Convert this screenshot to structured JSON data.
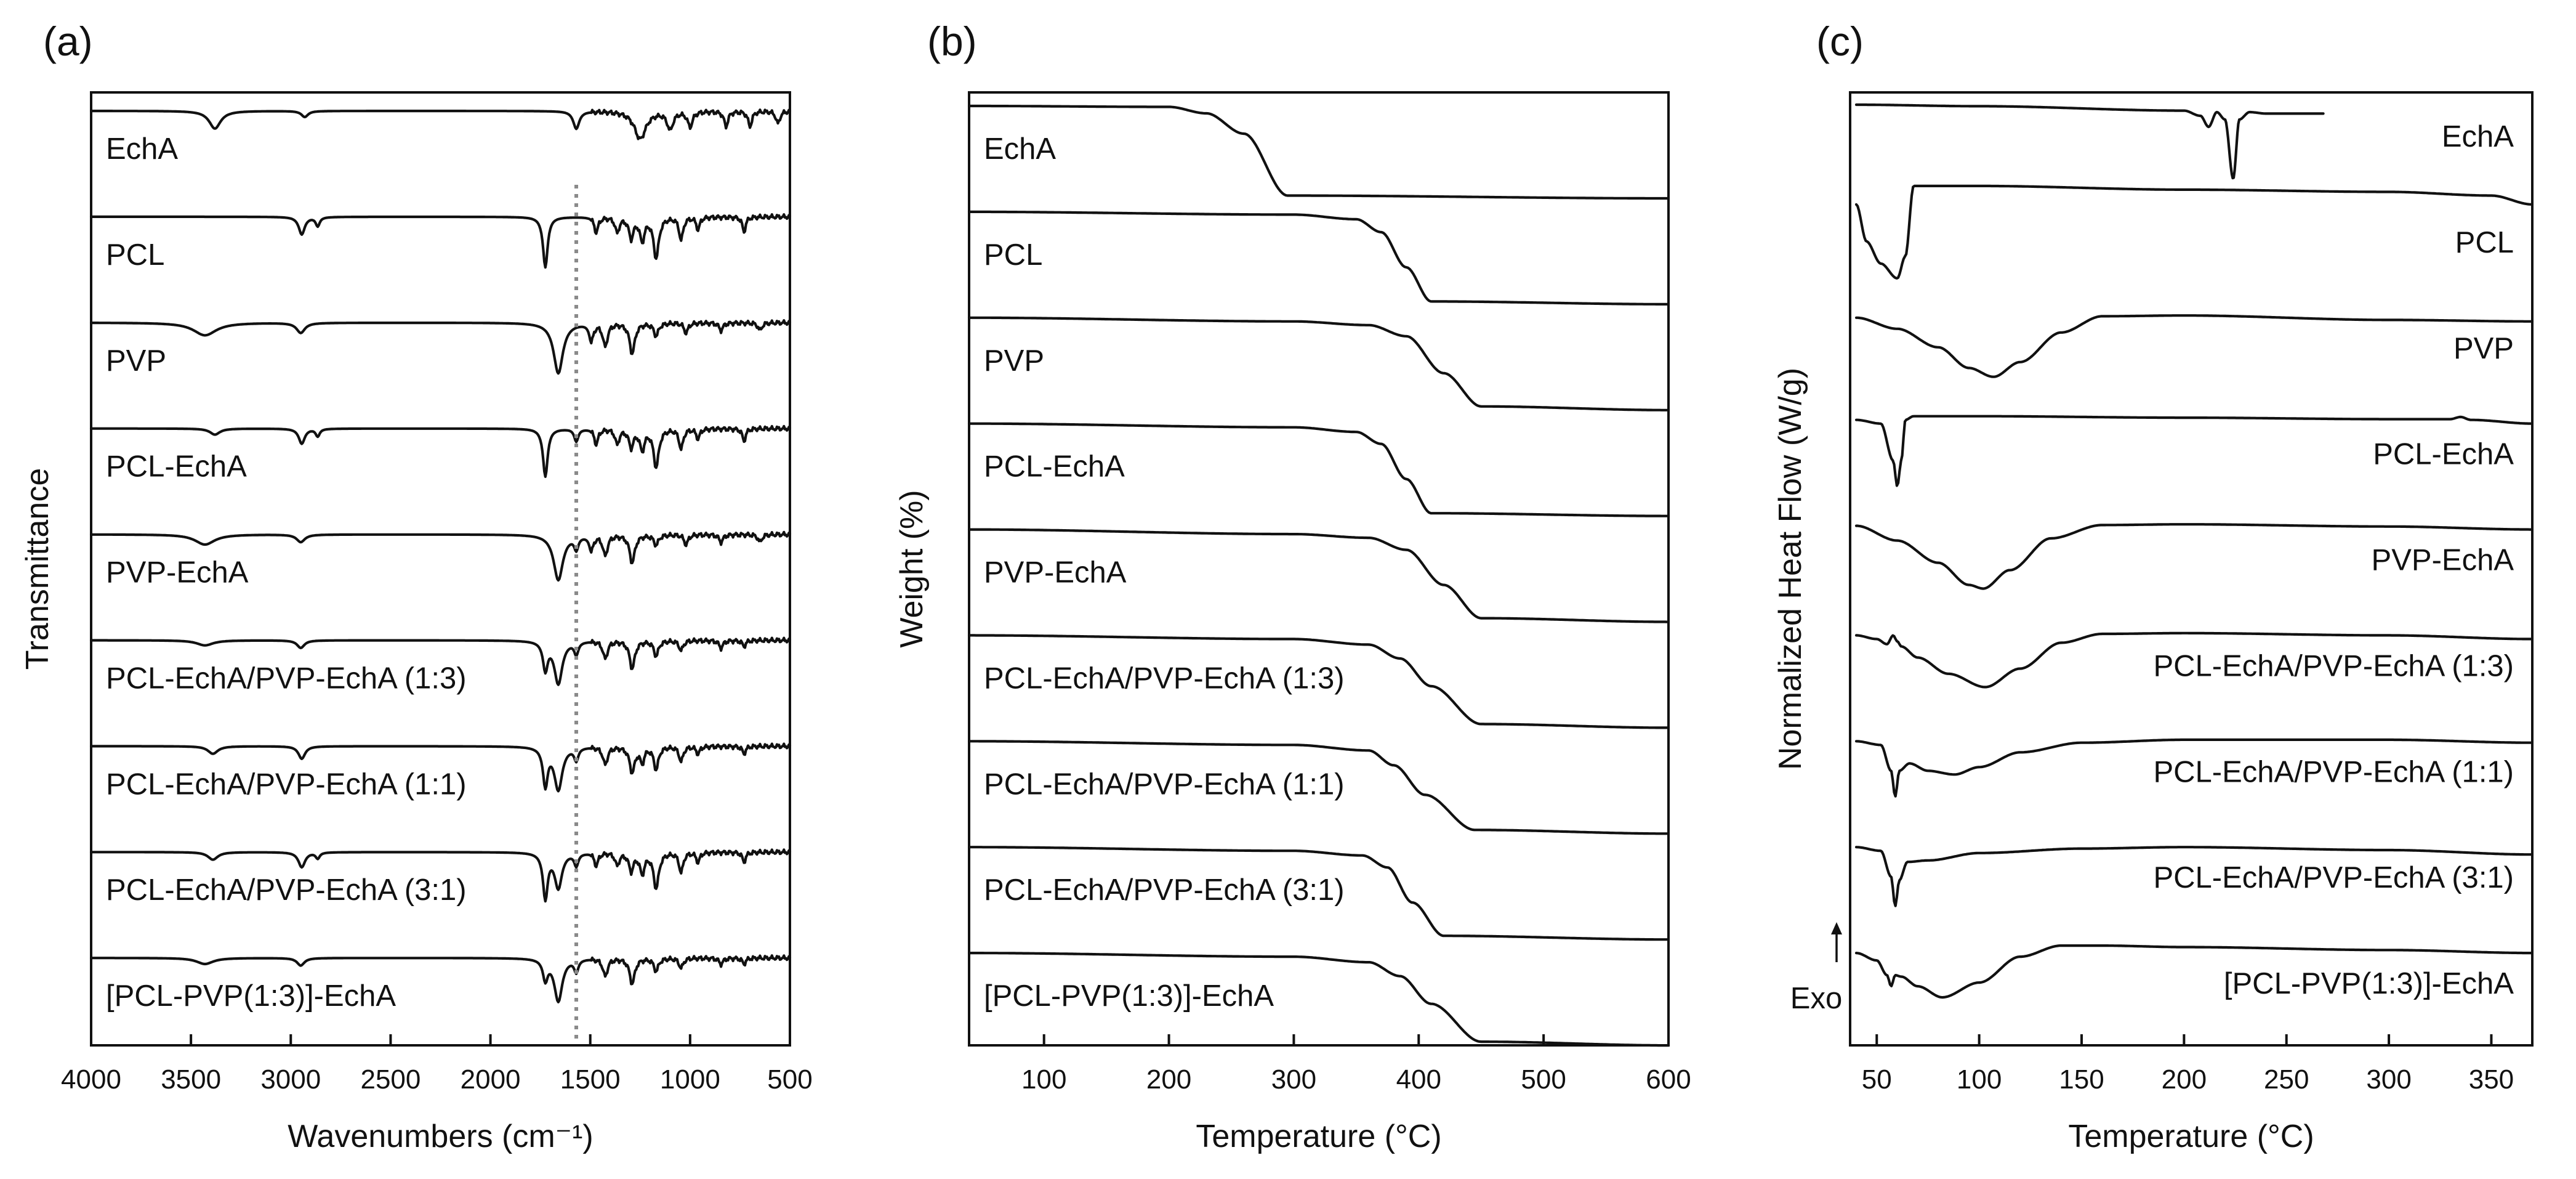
{
  "chart_data": [
    {
      "panel": "(a)",
      "type": "line",
      "xlabel": "Wavenumbers (cm⁻¹)",
      "ylabel": "Transmittance",
      "xlim": [
        4000,
        500
      ],
      "x_reversed": true,
      "xticks": [
        4000,
        3500,
        3000,
        2500,
        2000,
        1500,
        1000,
        500
      ],
      "reference_line_x": 1570,
      "series": [
        {
          "name": "EchA",
          "bands": [
            [
              3380,
              0.35,
              35
            ],
            [
              2930,
              0.12,
              20
            ],
            [
              1570,
              0.35,
              18
            ],
            [
              1250,
              0.55,
              35
            ],
            [
              1100,
              0.35,
              18
            ],
            [
              1000,
              0.3,
              15
            ],
            [
              820,
              0.3,
              12
            ],
            [
              700,
              0.3,
              12
            ],
            [
              560,
              0.25,
              12
            ]
          ]
        },
        {
          "name": "PCL",
          "bands": [
            [
              2945,
              0.35,
              18
            ],
            [
              2865,
              0.18,
              12
            ],
            [
              1725,
              1.0,
              14
            ],
            [
              1470,
              0.3,
              12
            ],
            [
              1365,
              0.3,
              12
            ],
            [
              1295,
              0.4,
              14
            ],
            [
              1240,
              0.45,
              14
            ],
            [
              1170,
              0.8,
              16
            ],
            [
              1045,
              0.45,
              12
            ],
            [
              960,
              0.25,
              10
            ],
            [
              730,
              0.3,
              10
            ]
          ]
        },
        {
          "name": "PVP",
          "bands": [
            [
              3430,
              0.25,
              70
            ],
            [
              2950,
              0.2,
              25
            ],
            [
              1660,
              1.0,
              28
            ],
            [
              1495,
              0.35,
              12
            ],
            [
              1425,
              0.45,
              14
            ],
            [
              1290,
              0.6,
              16
            ],
            [
              1170,
              0.25,
              14
            ],
            [
              1020,
              0.2,
              12
            ],
            [
              845,
              0.15,
              12
            ],
            [
              650,
              0.15,
              12
            ]
          ]
        },
        {
          "name": "PCL-EchA",
          "bands": [
            [
              3380,
              0.12,
              30
            ],
            [
              2945,
              0.3,
              18
            ],
            [
              2865,
              0.15,
              12
            ],
            [
              1725,
              0.95,
              14
            ],
            [
              1570,
              0.25,
              12
            ],
            [
              1470,
              0.3,
              12
            ],
            [
              1365,
              0.3,
              12
            ],
            [
              1295,
              0.35,
              14
            ],
            [
              1240,
              0.4,
              14
            ],
            [
              1170,
              0.75,
              16
            ],
            [
              1045,
              0.4,
              12
            ],
            [
              960,
              0.2,
              10
            ],
            [
              730,
              0.25,
              10
            ]
          ]
        },
        {
          "name": "PVP-EchA",
          "bands": [
            [
              3430,
              0.2,
              60
            ],
            [
              2950,
              0.15,
              25
            ],
            [
              1660,
              0.9,
              28
            ],
            [
              1570,
              0.25,
              12
            ],
            [
              1495,
              0.3,
              12
            ],
            [
              1425,
              0.4,
              14
            ],
            [
              1290,
              0.55,
              16
            ],
            [
              1170,
              0.2,
              14
            ],
            [
              1020,
              0.2,
              12
            ],
            [
              845,
              0.15,
              12
            ],
            [
              650,
              0.15,
              12
            ]
          ]
        },
        {
          "name": "PCL-EchA/PVP-EchA (1:3)",
          "bands": [
            [
              3430,
              0.1,
              50
            ],
            [
              2950,
              0.15,
              22
            ],
            [
              1725,
              0.55,
              14
            ],
            [
              1660,
              0.85,
              24
            ],
            [
              1570,
              0.25,
              12
            ],
            [
              1425,
              0.35,
              14
            ],
            [
              1290,
              0.55,
              16
            ],
            [
              1170,
              0.3,
              14
            ],
            [
              1045,
              0.2,
              12
            ],
            [
              845,
              0.15,
              12
            ],
            [
              730,
              0.12,
              10
            ]
          ]
        },
        {
          "name": "PCL-EchA/PVP-EchA (1:1)",
          "bands": [
            [
              3390,
              0.15,
              30
            ],
            [
              2945,
              0.25,
              20
            ],
            [
              1725,
              0.75,
              14
            ],
            [
              1660,
              0.85,
              24
            ],
            [
              1570,
              0.25,
              12
            ],
            [
              1425,
              0.35,
              14
            ],
            [
              1290,
              0.5,
              16
            ],
            [
              1240,
              0.3,
              12
            ],
            [
              1170,
              0.45,
              14
            ],
            [
              1045,
              0.3,
              12
            ],
            [
              960,
              0.15,
              10
            ],
            [
              730,
              0.15,
              10
            ]
          ]
        },
        {
          "name": "PCL-EchA/PVP-EchA (3:1)",
          "bands": [
            [
              3390,
              0.15,
              30
            ],
            [
              2945,
              0.3,
              20
            ],
            [
              2865,
              0.12,
              12
            ],
            [
              1725,
              0.9,
              14
            ],
            [
              1660,
              0.7,
              22
            ],
            [
              1570,
              0.25,
              12
            ],
            [
              1470,
              0.25,
              12
            ],
            [
              1365,
              0.25,
              12
            ],
            [
              1295,
              0.35,
              14
            ],
            [
              1240,
              0.4,
              14
            ],
            [
              1170,
              0.7,
              16
            ],
            [
              1045,
              0.4,
              12
            ],
            [
              960,
              0.2,
              10
            ],
            [
              730,
              0.2,
              10
            ]
          ]
        },
        {
          "name": "[PCL-PVP(1:3)]-EchA",
          "bands": [
            [
              3430,
              0.12,
              50
            ],
            [
              2950,
              0.15,
              22
            ],
            [
              1725,
              0.4,
              14
            ],
            [
              1660,
              0.85,
              24
            ],
            [
              1570,
              0.25,
              12
            ],
            [
              1425,
              0.35,
              14
            ],
            [
              1290,
              0.5,
              16
            ],
            [
              1170,
              0.25,
              14
            ],
            [
              1045,
              0.2,
              12
            ],
            [
              845,
              0.12,
              12
            ],
            [
              730,
              0.12,
              10
            ]
          ]
        }
      ]
    },
    {
      "panel": "(b)",
      "type": "line",
      "xlabel": "Temperature (°C)",
      "ylabel": "Weight (%)",
      "xlim": [
        40,
        600
      ],
      "xticks": [
        100,
        200,
        300,
        400,
        500,
        600
      ],
      "series": [
        {
          "name": "EchA",
          "x": [
            40,
            200,
            230,
            260,
            295,
            600
          ],
          "values": [
            100,
            99,
            92,
            70,
            3,
            0
          ]
        },
        {
          "name": "PCL",
          "x": [
            40,
            300,
            350,
            370,
            390,
            410,
            600
          ],
          "values": [
            100,
            97,
            92,
            78,
            40,
            3,
            0
          ]
        },
        {
          "name": "PVP",
          "x": [
            40,
            300,
            360,
            390,
            420,
            450,
            600
          ],
          "values": [
            100,
            96,
            92,
            80,
            40,
            4,
            0
          ]
        },
        {
          "name": "PCL-EchA",
          "x": [
            40,
            300,
            350,
            370,
            390,
            410,
            600
          ],
          "values": [
            100,
            96,
            91,
            78,
            40,
            3,
            0
          ]
        },
        {
          "name": "PVP-EchA",
          "x": [
            40,
            300,
            360,
            390,
            420,
            450,
            600
          ],
          "values": [
            100,
            95,
            91,
            78,
            40,
            4,
            0
          ]
        },
        {
          "name": "PCL-EchA/PVP-EchA (1:3)",
          "x": [
            40,
            300,
            360,
            385,
            410,
            450,
            600
          ],
          "values": [
            100,
            96,
            90,
            75,
            45,
            4,
            0
          ]
        },
        {
          "name": "PCL-EchA/PVP-EchA (1:1)",
          "x": [
            40,
            300,
            360,
            380,
            405,
            445,
            600
          ],
          "values": [
            100,
            96,
            90,
            74,
            42,
            4,
            0
          ]
        },
        {
          "name": "PCL-EchA/PVP-EchA (3:1)",
          "x": [
            40,
            300,
            355,
            375,
            395,
            420,
            600
          ],
          "values": [
            100,
            96,
            91,
            78,
            40,
            4,
            0
          ]
        },
        {
          "name": "[PCL-PVP(1:3)]-EchA",
          "x": [
            40,
            300,
            360,
            385,
            410,
            450,
            600
          ],
          "values": [
            100,
            96,
            90,
            75,
            45,
            4,
            0
          ]
        }
      ]
    },
    {
      "panel": "(c)",
      "type": "line",
      "xlabel": "Temperature (°C)",
      "ylabel": "Normalized Heat Flow (W/g)",
      "xlim": [
        37,
        370
      ],
      "xticks": [
        50,
        100,
        150,
        200,
        250,
        300,
        350
      ],
      "annotation": "Exo",
      "series": [
        {
          "name": "EchA",
          "x": [
            40,
            100,
            200,
            208,
            212,
            216,
            220,
            224,
            227,
            232,
            240,
            268
          ],
          "values": [
            0,
            -0.02,
            -0.08,
            -0.15,
            -0.3,
            -0.1,
            -0.2,
            -1.0,
            -0.2,
            -0.1,
            -0.12,
            -0.12
          ]
        },
        {
          "name": "PCL",
          "x": [
            40,
            45,
            52,
            60,
            64,
            68,
            100,
            200,
            300,
            350,
            370
          ],
          "values": [
            1,
            0.5,
            0.2,
            0.0,
            0.3,
            1.25,
            1.25,
            1.2,
            1.17,
            1.12,
            1.0
          ]
        },
        {
          "name": "PVP",
          "x": [
            40,
            60,
            80,
            95,
            107,
            120,
            140,
            160,
            200,
            300,
            370
          ],
          "values": [
            0.9,
            0.75,
            0.5,
            0.22,
            0.1,
            0.3,
            0.7,
            0.92,
            0.93,
            0.87,
            0.85
          ]
        },
        {
          "name": "PCL-EchA",
          "x": [
            40,
            52,
            58,
            60,
            62,
            64,
            68,
            100,
            200,
            300,
            330,
            335,
            340,
            370
          ],
          "values": [
            0.95,
            0.9,
            0.4,
            0.05,
            0.4,
            0.95,
            1.0,
            1.0,
            0.98,
            0.96,
            0.96,
            0.99,
            0.95,
            0.9
          ]
        },
        {
          "name": "PVP-EchA",
          "x": [
            40,
            60,
            80,
            95,
            102,
            115,
            135,
            160,
            200,
            300,
            370
          ],
          "values": [
            0.95,
            0.75,
            0.45,
            0.15,
            0.1,
            0.35,
            0.78,
            0.96,
            0.97,
            0.94,
            0.9
          ]
        },
        {
          "name": "PCL-EchA/PVP-EchA (1:3)",
          "x": [
            40,
            50,
            55,
            58,
            60,
            62,
            70,
            85,
            103,
            120,
            140,
            160,
            200,
            300,
            370
          ],
          "values": [
            0.9,
            0.85,
            0.78,
            0.9,
            0.82,
            0.75,
            0.6,
            0.38,
            0.2,
            0.45,
            0.8,
            0.92,
            0.93,
            0.9,
            0.85
          ]
        },
        {
          "name": "PCL-EchA/PVP-EchA (1:1)",
          "x": [
            40,
            52,
            57,
            59,
            61,
            66,
            75,
            88,
            100,
            120,
            150,
            200,
            300,
            370
          ],
          "values": [
            0.9,
            0.85,
            0.5,
            0.15,
            0.5,
            0.6,
            0.5,
            0.45,
            0.55,
            0.75,
            0.88,
            0.92,
            0.92,
            0.88
          ]
        },
        {
          "name": "PCL-EchA/PVP-EchA (3:1)",
          "x": [
            40,
            52,
            57,
            59,
            61,
            65,
            75,
            100,
            150,
            200,
            300,
            370
          ],
          "values": [
            0.9,
            0.85,
            0.5,
            0.1,
            0.45,
            0.7,
            0.72,
            0.82,
            0.88,
            0.9,
            0.86,
            0.8
          ]
        },
        {
          "name": "[PCL-PVP(1:3)]-EchA",
          "x": [
            40,
            50,
            55,
            57,
            59,
            62,
            70,
            82,
            100,
            120,
            140,
            160,
            200,
            300,
            370
          ],
          "values": [
            0.9,
            0.8,
            0.6,
            0.45,
            0.6,
            0.58,
            0.45,
            0.3,
            0.5,
            0.85,
            1.0,
            1.0,
            0.98,
            0.94,
            0.9
          ]
        }
      ]
    }
  ]
}
